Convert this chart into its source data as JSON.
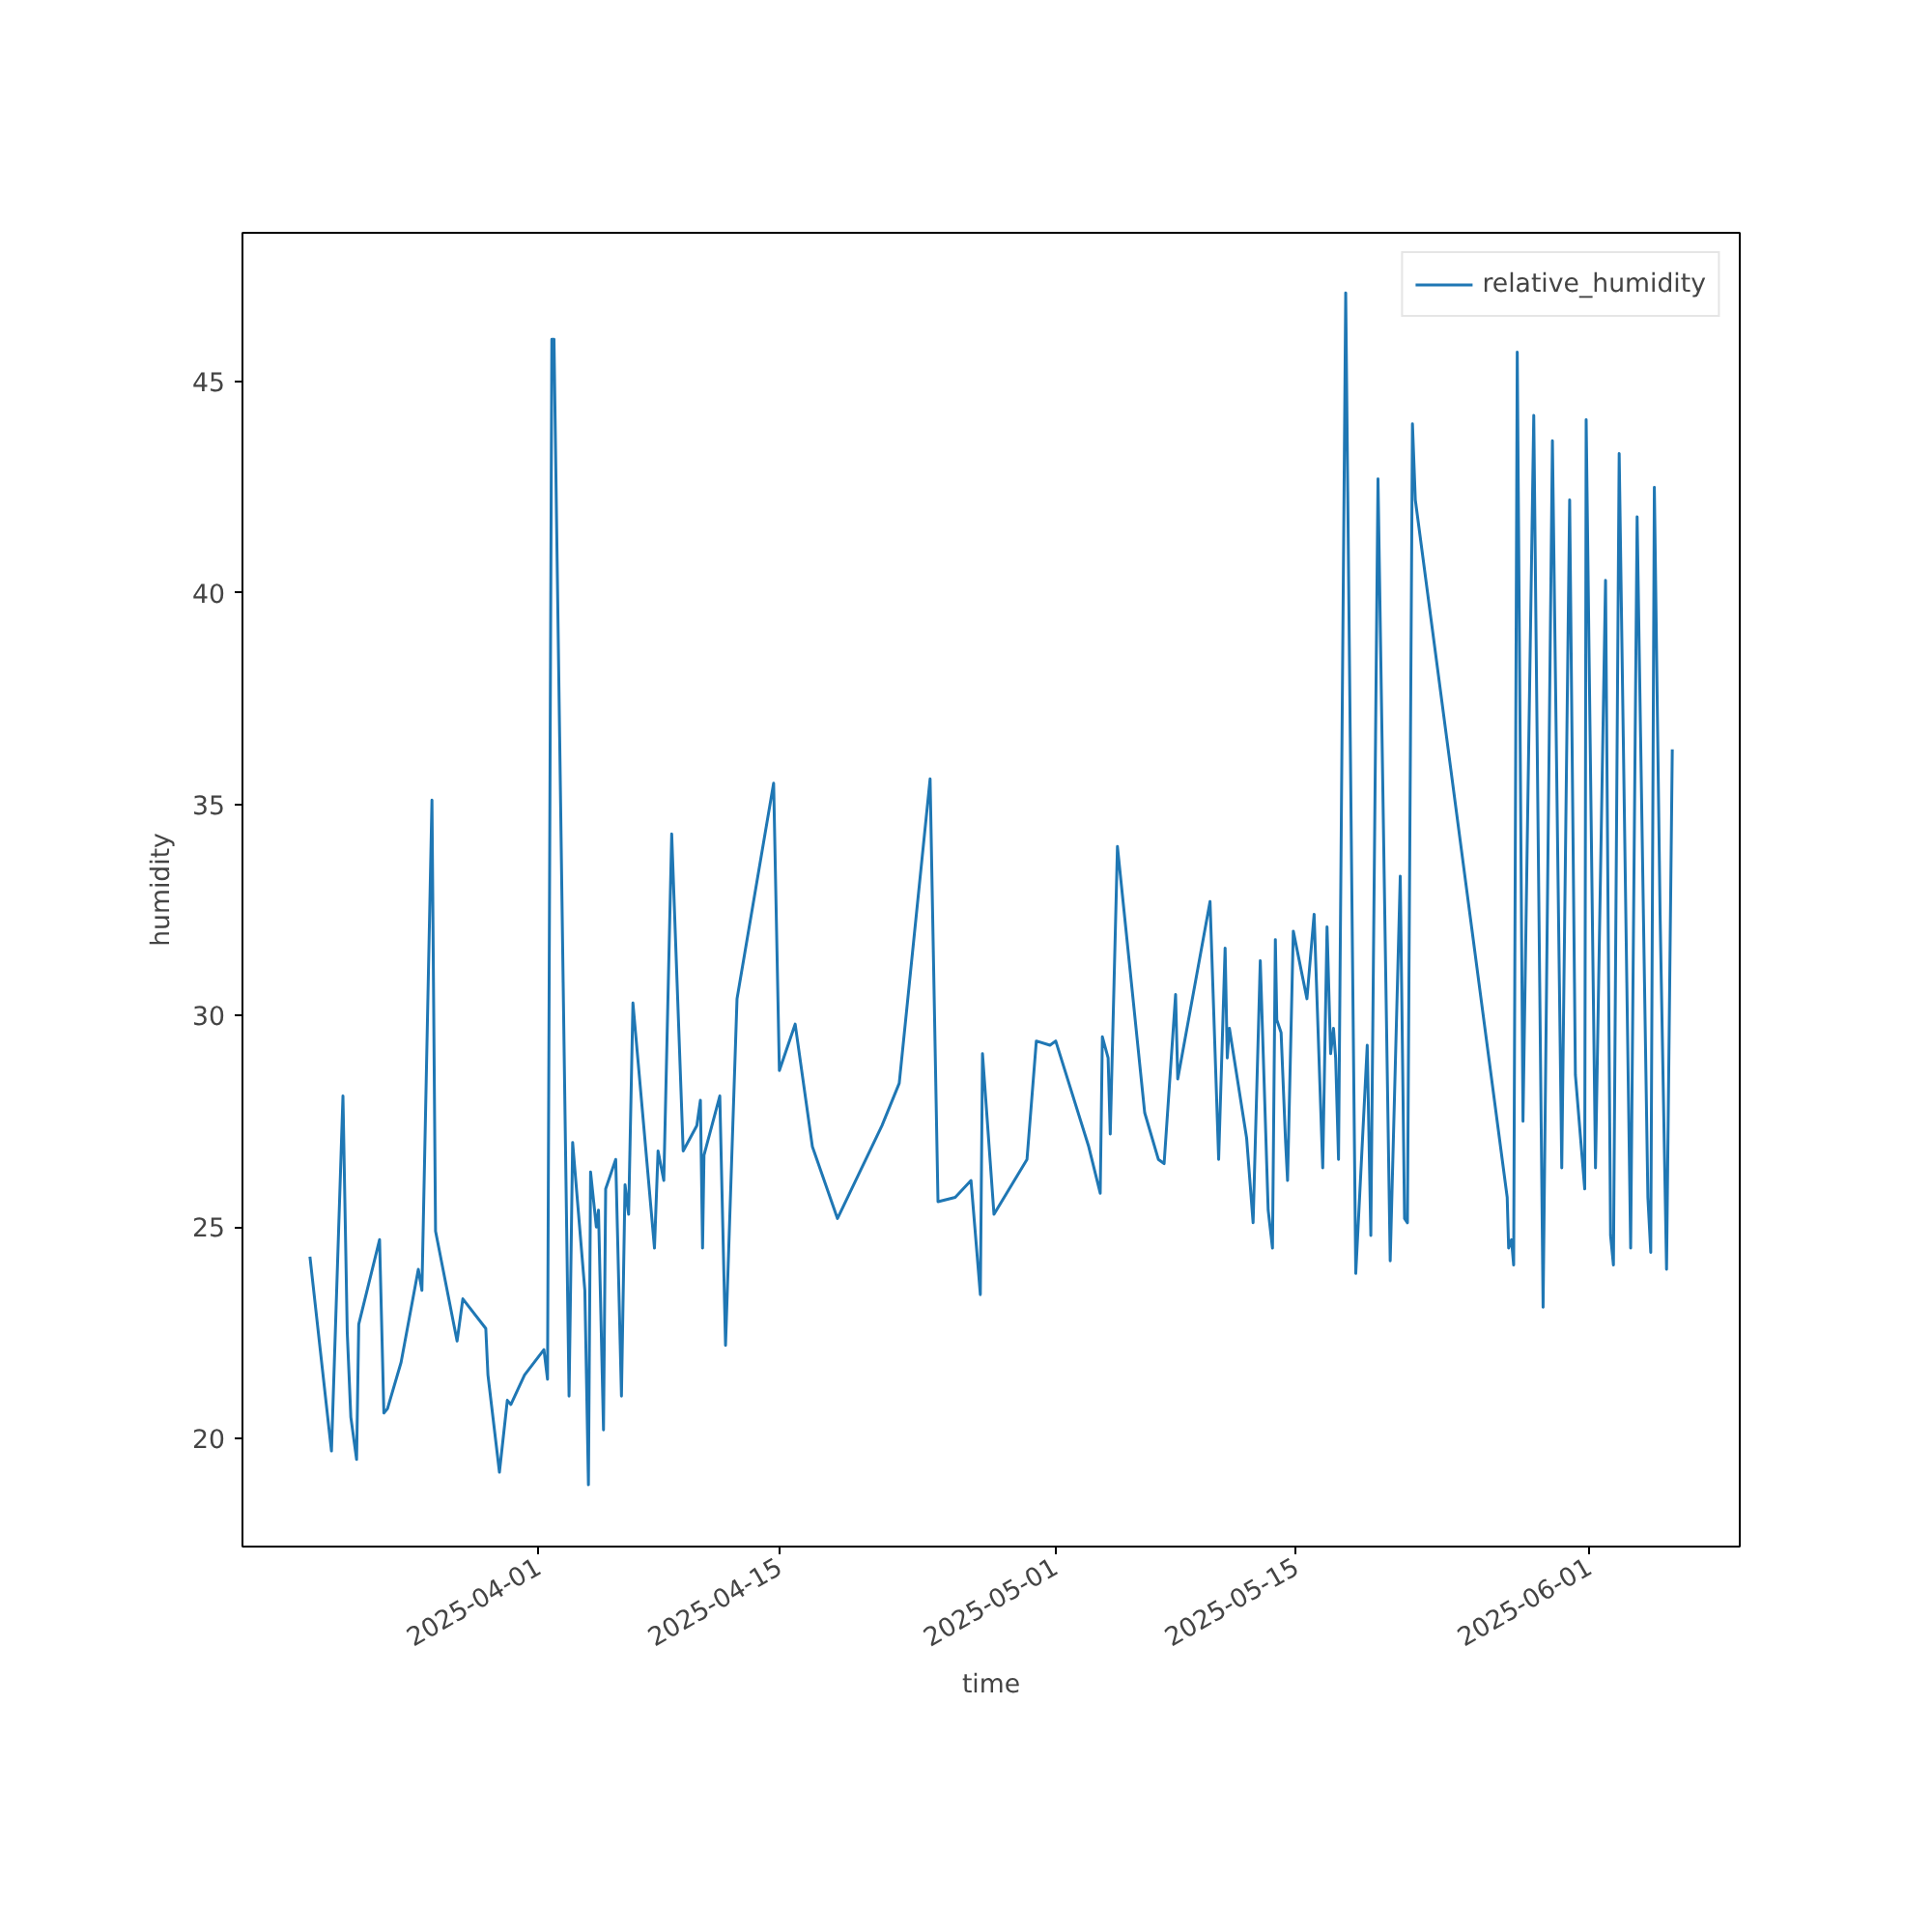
{
  "chart_data": {
    "type": "line",
    "xlabel": "time",
    "ylabel": "humidity",
    "x": [
      "2025-03-18T18:00",
      "2025-03-20T00:00",
      "2025-03-20T16:00",
      "2025-03-20T22:00",
      "2025-03-21T03:00",
      "2025-03-21T11:00",
      "2025-03-21T14:00",
      "2025-03-22T19:00",
      "2025-03-23T01:00",
      "2025-03-23T06:00",
      "2025-03-24T01:00",
      "2025-03-25T01:00",
      "2025-03-25T06:00",
      "2025-03-25T20:00",
      "2025-03-26T01:00",
      "2025-03-27T07:00",
      "2025-03-27T15:00",
      "2025-03-28T23:00",
      "2025-03-29T02:00",
      "2025-03-29T18:00",
      "2025-03-30T05:00",
      "2025-03-30T10:00",
      "2025-03-31T05:00",
      "2025-04-01T08:00",
      "2025-04-01T13:00",
      "2025-04-01T19:00",
      "2025-04-01T22:00",
      "2025-04-02T19:00",
      "2025-04-03T00:00",
      "2025-04-03T17:00",
      "2025-04-03T22:00",
      "2025-04-04T01:00",
      "2025-04-04T09:00",
      "2025-04-04T12:00",
      "2025-04-04T19:00",
      "2025-04-04T22:00",
      "2025-04-05T12:00",
      "2025-04-05T20:00",
      "2025-04-06T01:00",
      "2025-04-06T06:00",
      "2025-04-06T12:00",
      "2025-04-07T18:00",
      "2025-04-07T23:00",
      "2025-04-08T07:00",
      "2025-04-08T18:00",
      "2025-04-09T10:00",
      "2025-04-10T05:00",
      "2025-04-10T10:00",
      "2025-04-10T13:00",
      "2025-04-10T15:00",
      "2025-04-11T13:00",
      "2025-04-11T21:00",
      "2025-04-12T13:00",
      "2025-04-14T16:00",
      "2025-04-15T00:00",
      "2025-04-15T22:00",
      "2025-04-16T22:00",
      "2025-04-18T09:00",
      "2025-04-20T23:00",
      "2025-04-21T23:00",
      "2025-04-23T18:00",
      "2025-04-24T05:00",
      "2025-04-25T05:00",
      "2025-04-26T03:00",
      "2025-04-26T16:00",
      "2025-04-26T19:00",
      "2025-04-27T11:00",
      "2025-04-29T09:00",
      "2025-04-29T22:00",
      "2025-04-30T17:00",
      "2025-05-01T01:00",
      "2025-05-02T23:00",
      "2025-05-03T15:00",
      "2025-05-03T18:00",
      "2025-05-04T02:00",
      "2025-05-04T05:00",
      "2025-05-04T15:00",
      "2025-05-06T05:00",
      "2025-05-07T00:00",
      "2025-05-07T08:00",
      "2025-05-08T00:00",
      "2025-05-08T03:00",
      "2025-05-10T00:00",
      "2025-05-10T12:00",
      "2025-05-10T21:00",
      "2025-05-11T00:00",
      "2025-05-11T03:00",
      "2025-05-12T03:00",
      "2025-05-12T12:00",
      "2025-05-12T22:00",
      "2025-05-13T09:00",
      "2025-05-13T15:00",
      "2025-05-13T19:00",
      "2025-05-13T21:00",
      "2025-05-14T03:00",
      "2025-05-14T09:00",
      "2025-05-14T12:00",
      "2025-05-14T20:00",
      "2025-05-15T15:00",
      "2025-05-16T01:00",
      "2025-05-16T13:00",
      "2025-05-16T19:00",
      "2025-05-17T00:00",
      "2025-05-17T04:00",
      "2025-05-17T07:00",
      "2025-05-17T11:00",
      "2025-05-17T21:00",
      "2025-05-18T11:00",
      "2025-05-19T03:00",
      "2025-05-19T08:00",
      "2025-05-19T18:00",
      "2025-05-20T11:00",
      "2025-05-21T01:00",
      "2025-05-21T07:00",
      "2025-05-21T11:00",
      "2025-05-21T18:00",
      "2025-05-21T22:00",
      "2025-05-27T06:00",
      "2025-05-27T08:00",
      "2025-05-27T12:00",
      "2025-05-27T15:00",
      "2025-05-27T20:00",
      "2025-05-28T04:00",
      "2025-05-28T19:00",
      "2025-05-29T08:00",
      "2025-05-29T21:00",
      "2025-05-30T10:00",
      "2025-05-30T21:00",
      "2025-05-31T05:00",
      "2025-05-31T18:00",
      "2025-05-31T20:00",
      "2025-06-01T09:00",
      "2025-06-01T23:00",
      "2025-06-02T06:00",
      "2025-06-02T10:00",
      "2025-06-02T18:00",
      "2025-06-03T10:00",
      "2025-06-03T19:00",
      "2025-06-04T10:00",
      "2025-06-04T14:00",
      "2025-06-04T19:00",
      "2025-06-05T03:00",
      "2025-06-05T12:00",
      "2025-06-05T20:00"
    ],
    "series": [
      {
        "name": "relative_humidity",
        "color": "#1f77b4",
        "values": [
          24.3,
          19.7,
          28.1,
          22.5,
          20.5,
          19.5,
          22.7,
          24.7,
          20.6,
          20.7,
          21.8,
          24.0,
          23.5,
          35.1,
          24.9,
          22.3,
          23.3,
          22.6,
          21.5,
          19.2,
          20.9,
          20.8,
          21.5,
          22.1,
          21.4,
          46.0,
          46.0,
          21.0,
          27.0,
          23.5,
          18.9,
          26.3,
          25.0,
          25.4,
          20.2,
          25.9,
          26.6,
          21.0,
          26.0,
          25.3,
          30.3,
          24.5,
          26.8,
          26.1,
          34.3,
          26.8,
          27.4,
          28.0,
          24.5,
          26.7,
          28.1,
          22.2,
          30.4,
          35.5,
          28.7,
          29.8,
          26.9,
          25.2,
          27.4,
          28.4,
          35.6,
          25.6,
          25.7,
          26.1,
          23.4,
          29.1,
          25.3,
          26.6,
          29.4,
          29.3,
          29.4,
          26.9,
          25.8,
          29.5,
          29.0,
          27.2,
          34.0,
          27.7,
          26.6,
          26.5,
          30.5,
          28.5,
          32.7,
          26.6,
          31.6,
          29.0,
          29.7,
          27.1,
          25.1,
          31.3,
          25.4,
          24.5,
          31.8,
          29.9,
          29.6,
          27.1,
          26.1,
          32.0,
          30.4,
          32.4,
          26.4,
          32.1,
          29.1,
          29.7,
          29.0,
          26.6,
          47.1,
          23.9,
          29.3,
          24.8,
          42.7,
          24.2,
          33.3,
          25.2,
          25.1,
          44.0,
          42.2,
          25.7,
          24.5,
          24.7,
          24.1,
          45.7,
          27.5,
          44.2,
          23.1,
          43.6,
          26.4,
          42.2,
          28.6,
          25.9,
          44.1,
          26.4,
          40.3,
          24.8,
          24.1,
          43.3,
          24.5,
          41.8,
          25.7,
          24.4,
          42.5,
          32.4,
          24.0,
          36.3
        ]
      }
    ],
    "xlim": [
      "2025-03-14T20:00",
      "2025-06-09T18:00"
    ],
    "xticks": [
      "2025-04-01",
      "2025-04-15",
      "2025-05-01",
      "2025-05-15",
      "2025-06-01"
    ],
    "ylim": [
      17.44,
      48.52
    ],
    "yticks": [
      20,
      25,
      30,
      35,
      40,
      45
    ],
    "legend": "top right",
    "grid": false,
    "line_style": "solid",
    "marker": "none"
  }
}
